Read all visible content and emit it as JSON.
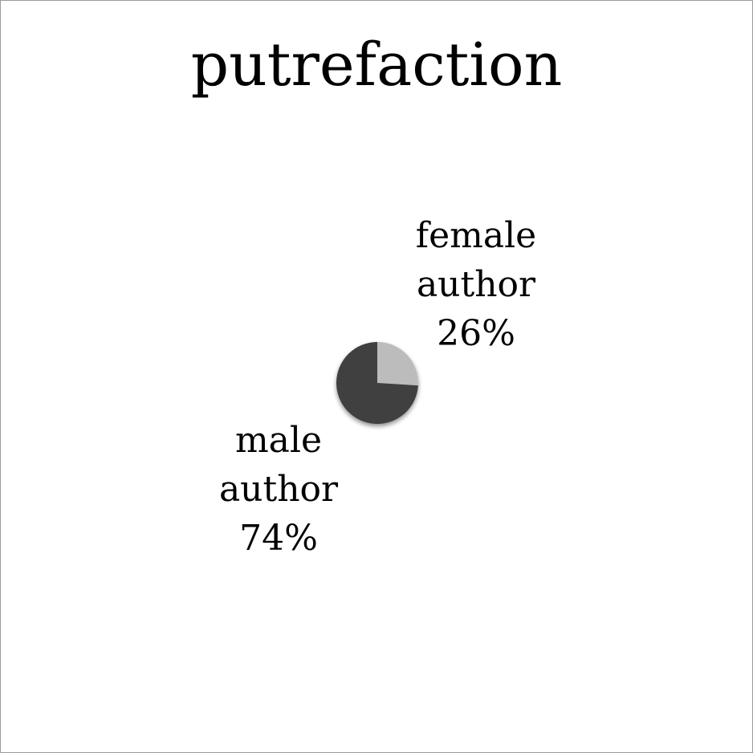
{
  "chart_data": {
    "type": "pie",
    "title": "putrefaction",
    "slices": [
      {
        "category_line1": "female",
        "category_line2": "author",
        "value": 26,
        "label": "26%",
        "color": "#bcbcbc"
      },
      {
        "category_line1": "male",
        "category_line2": "author",
        "value": 74,
        "label": "74%",
        "color": "#3f3f3f"
      }
    ],
    "start_angle_deg": 0,
    "direction": "clockwise"
  }
}
